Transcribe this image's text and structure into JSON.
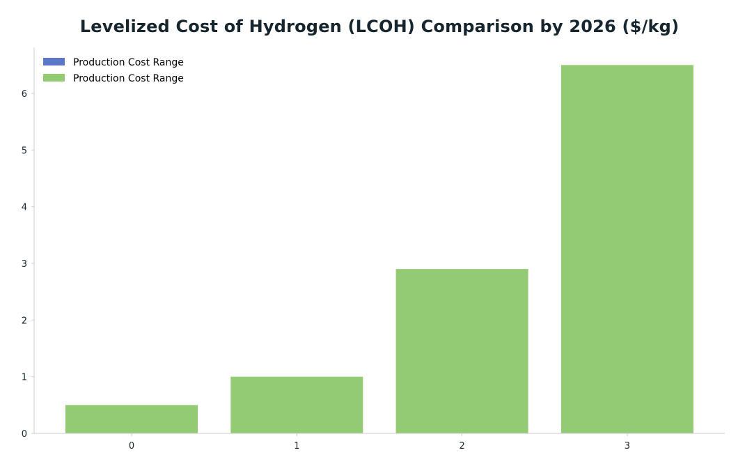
{
  "chart_data": {
    "type": "bar",
    "title": "Levelized Cost of Hydrogen (LCOH) Comparison by 2026 ($/kg)",
    "xlabel": "",
    "ylabel": "",
    "categories": [
      "0",
      "1",
      "2",
      "3"
    ],
    "ylim": [
      0,
      6.8
    ],
    "yticks": [
      "0",
      "1",
      "2",
      "3",
      "4",
      "5",
      "6"
    ],
    "grid": false,
    "legend_position": "top-left",
    "series": [
      {
        "name": "Production Cost Range",
        "color": "#5b77c8",
        "values": [
          0,
          0,
          0,
          0
        ]
      },
      {
        "name": "Production Cost Range",
        "color": "#93cb74",
        "values": [
          0.5,
          1.0,
          2.9,
          6.5
        ]
      }
    ],
    "axis_color": "#cccccc",
    "text_color": "#17252f"
  }
}
